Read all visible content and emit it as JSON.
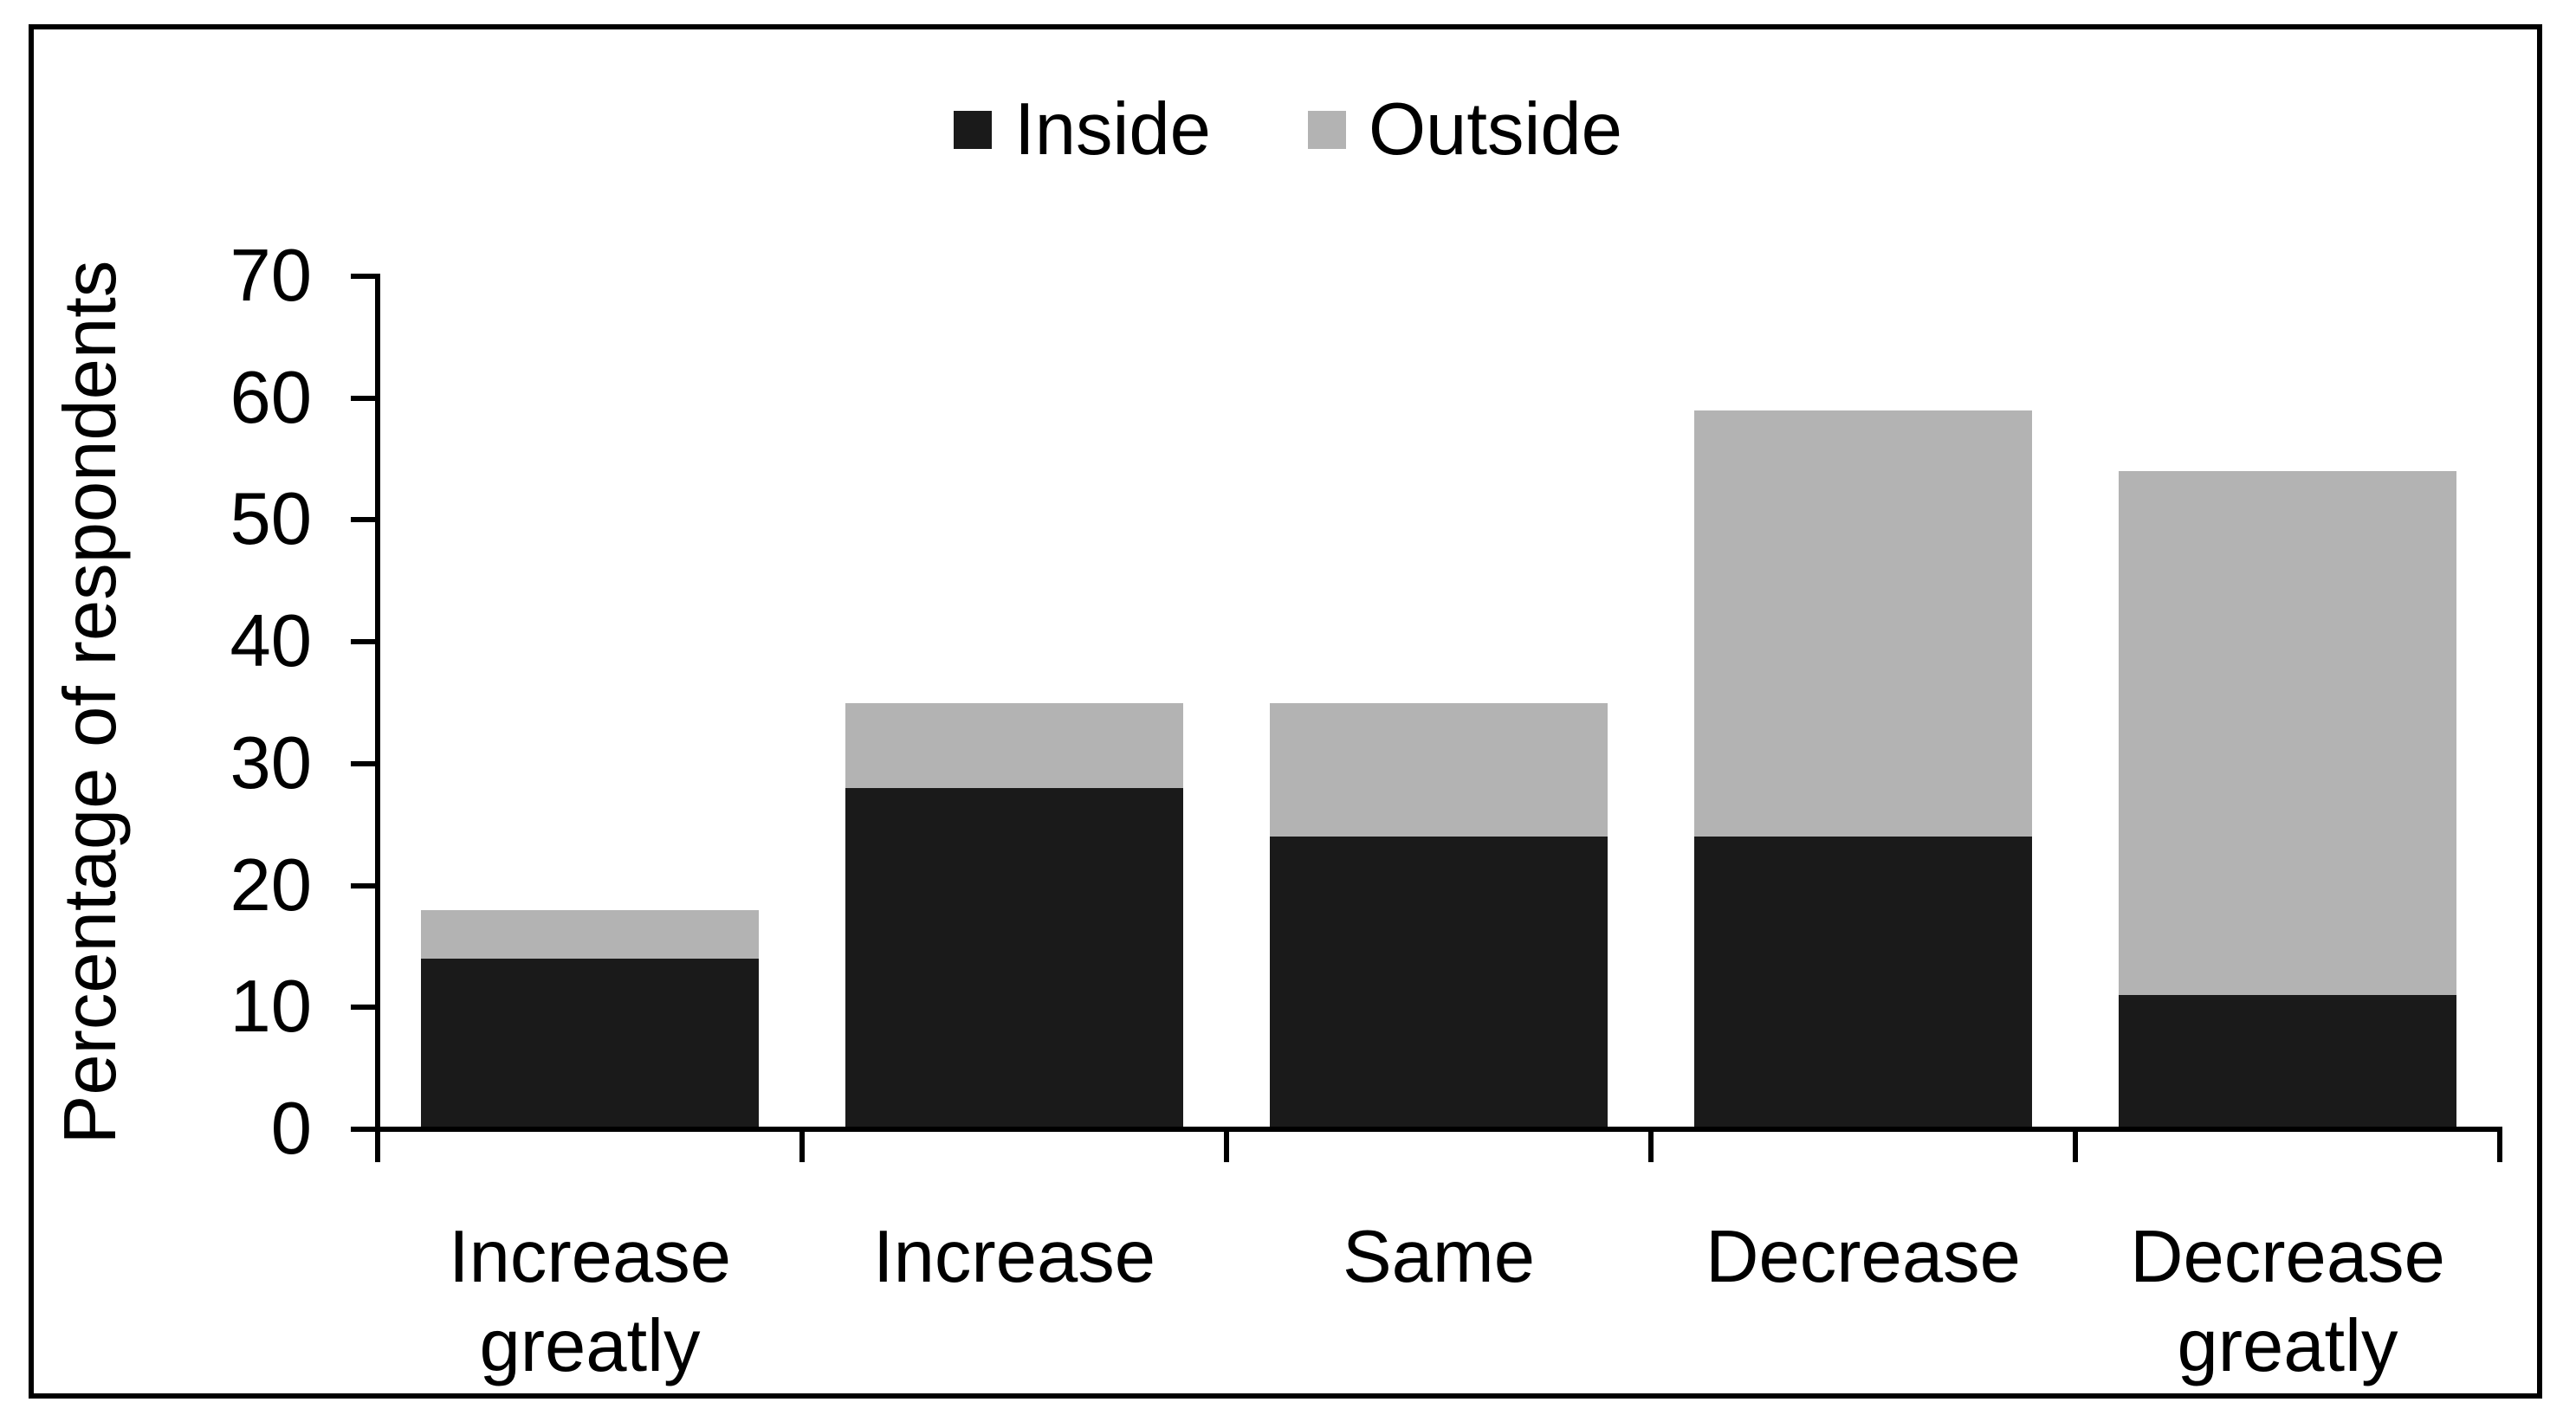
{
  "chart_data": {
    "type": "bar",
    "stacked": true,
    "title": "",
    "categories": [
      "Increase\ngreatly",
      "Increase",
      "Same",
      "Decrease",
      "Decrease\ngreatly"
    ],
    "series": [
      {
        "name": "Inside",
        "color": "#1a1a1a",
        "values": [
          14,
          28,
          24,
          24,
          11
        ]
      },
      {
        "name": "Outside",
        "color": "#b3b3b3",
        "values": [
          4,
          7,
          11,
          35,
          43
        ]
      }
    ],
    "stacked_totals": [
      18,
      35,
      35,
      59,
      54
    ],
    "xlabel": "",
    "ylabel": "Percentage of respondents",
    "ylim": [
      0,
      70
    ],
    "ytick_step": 10,
    "yticks": [
      0,
      10,
      20,
      30,
      40,
      50,
      60,
      70
    ],
    "grid": false,
    "legend_position": "top-center",
    "colors": {
      "axis": "#000000",
      "text": "#000000",
      "background": "#ffffff",
      "frame_border": "#000000",
      "inside_fill": "#1a1a1a",
      "outside_fill": "#b3b3b3"
    }
  }
}
